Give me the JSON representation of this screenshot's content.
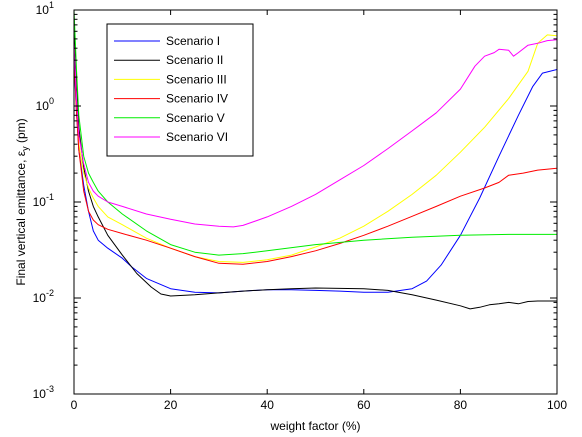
{
  "chart_data": {
    "type": "line",
    "title": "",
    "xlabel": "weight factor (%)",
    "ylabel": "Final vertical emittance, ε_y (pm)",
    "ylabel_parts": {
      "main": "Final vertical emittance, ε",
      "sub": "y",
      "unit": " (pm)"
    },
    "xlim": [
      0,
      100
    ],
    "ylim": [
      0.001,
      10
    ],
    "yscale": "log",
    "xticks": [
      0,
      20,
      40,
      60,
      80,
      100
    ],
    "xtick_labels": [
      "0",
      "20",
      "40",
      "60",
      "80",
      "100"
    ],
    "yticks": [
      {
        "value": 0.001,
        "base": "10",
        "exp": "-3"
      },
      {
        "value": 0.01,
        "base": "10",
        "exp": "-2"
      },
      {
        "value": 0.1,
        "base": "10",
        "exp": "-1"
      },
      {
        "value": 1,
        "base": "10",
        "exp": "0"
      },
      {
        "value": 10,
        "base": "10",
        "exp": "1"
      }
    ],
    "grid": false,
    "legend_position": "top-left",
    "series": [
      {
        "name": "Scenario I",
        "color": "#0000ff",
        "points": [
          [
            0,
            3.0
          ],
          [
            0.5,
            0.9
          ],
          [
            1,
            0.35
          ],
          [
            2,
            0.15
          ],
          [
            3,
            0.08
          ],
          [
            4,
            0.05
          ],
          [
            5,
            0.04
          ],
          [
            7,
            0.033
          ],
          [
            10,
            0.026
          ],
          [
            12,
            0.021
          ],
          [
            15,
            0.016
          ],
          [
            20,
            0.0125
          ],
          [
            25,
            0.0115
          ],
          [
            30,
            0.0113
          ],
          [
            35,
            0.0118
          ],
          [
            40,
            0.0122
          ],
          [
            45,
            0.0122
          ],
          [
            50,
            0.012
          ],
          [
            55,
            0.0118
          ],
          [
            60,
            0.0115
          ],
          [
            65,
            0.0115
          ],
          [
            70,
            0.0125
          ],
          [
            73,
            0.015
          ],
          [
            76,
            0.022
          ],
          [
            80,
            0.045
          ],
          [
            84,
            0.11
          ],
          [
            88,
            0.3
          ],
          [
            92,
            0.8
          ],
          [
            95,
            1.6
          ],
          [
            97,
            2.2
          ],
          [
            100,
            2.4
          ]
        ]
      },
      {
        "name": "Scenario II",
        "color": "#000000",
        "points": [
          [
            0,
            8.0
          ],
          [
            0.5,
            2.0
          ],
          [
            1,
            0.6
          ],
          [
            2,
            0.23
          ],
          [
            3,
            0.13
          ],
          [
            4,
            0.09
          ],
          [
            5,
            0.07
          ],
          [
            7,
            0.045
          ],
          [
            10,
            0.028
          ],
          [
            13,
            0.018
          ],
          [
            16,
            0.013
          ],
          [
            18,
            0.011
          ],
          [
            20,
            0.0105
          ],
          [
            25,
            0.0108
          ],
          [
            30,
            0.0113
          ],
          [
            35,
            0.0118
          ],
          [
            40,
            0.0122
          ],
          [
            45,
            0.0125
          ],
          [
            50,
            0.0127
          ],
          [
            55,
            0.0126
          ],
          [
            60,
            0.0125
          ],
          [
            65,
            0.012
          ],
          [
            70,
            0.0108
          ],
          [
            75,
            0.0095
          ],
          [
            80,
            0.0083
          ],
          [
            82,
            0.0077
          ],
          [
            84,
            0.008
          ],
          [
            86,
            0.0085
          ],
          [
            88,
            0.0087
          ],
          [
            90,
            0.009
          ],
          [
            92,
            0.0087
          ],
          [
            94,
            0.0092
          ],
          [
            96,
            0.0093
          ],
          [
            100,
            0.0093
          ]
        ]
      },
      {
        "name": "Scenario III",
        "color": "#ffff00",
        "points": [
          [
            0,
            4.0
          ],
          [
            0.5,
            1.0
          ],
          [
            1,
            0.4
          ],
          [
            2,
            0.2
          ],
          [
            3,
            0.14
          ],
          [
            4,
            0.11
          ],
          [
            5,
            0.09
          ],
          [
            7,
            0.07
          ],
          [
            10,
            0.058
          ],
          [
            15,
            0.042
          ],
          [
            20,
            0.033
          ],
          [
            25,
            0.027
          ],
          [
            30,
            0.024
          ],
          [
            35,
            0.0235
          ],
          [
            40,
            0.025
          ],
          [
            45,
            0.028
          ],
          [
            50,
            0.034
          ],
          [
            55,
            0.042
          ],
          [
            60,
            0.056
          ],
          [
            65,
            0.08
          ],
          [
            70,
            0.12
          ],
          [
            75,
            0.19
          ],
          [
            80,
            0.33
          ],
          [
            85,
            0.6
          ],
          [
            90,
            1.2
          ],
          [
            94,
            2.3
          ],
          [
            96,
            4.5
          ],
          [
            98,
            5.5
          ],
          [
            100,
            5.4
          ]
        ]
      },
      {
        "name": "Scenario IV",
        "color": "#ff0000",
        "points": [
          [
            0,
            3.5
          ],
          [
            0.5,
            0.9
          ],
          [
            1,
            0.35
          ],
          [
            2,
            0.13
          ],
          [
            3,
            0.08
          ],
          [
            4,
            0.065
          ],
          [
            5,
            0.058
          ],
          [
            7,
            0.052
          ],
          [
            10,
            0.047
          ],
          [
            15,
            0.04
          ],
          [
            20,
            0.033
          ],
          [
            25,
            0.027
          ],
          [
            30,
            0.023
          ],
          [
            35,
            0.0225
          ],
          [
            40,
            0.024
          ],
          [
            45,
            0.027
          ],
          [
            50,
            0.031
          ],
          [
            55,
            0.037
          ],
          [
            60,
            0.045
          ],
          [
            65,
            0.056
          ],
          [
            70,
            0.071
          ],
          [
            75,
            0.09
          ],
          [
            80,
            0.115
          ],
          [
            85,
            0.14
          ],
          [
            88,
            0.16
          ],
          [
            90,
            0.19
          ],
          [
            93,
            0.2
          ],
          [
            96,
            0.215
          ],
          [
            100,
            0.225
          ]
        ]
      },
      {
        "name": "Scenario V",
        "color": "#00ee00",
        "points": [
          [
            0,
            10
          ],
          [
            0.5,
            2.5
          ],
          [
            1,
            0.8
          ],
          [
            2,
            0.3
          ],
          [
            3,
            0.2
          ],
          [
            4,
            0.16
          ],
          [
            5,
            0.13
          ],
          [
            7,
            0.1
          ],
          [
            10,
            0.075
          ],
          [
            15,
            0.05
          ],
          [
            20,
            0.036
          ],
          [
            25,
            0.03
          ],
          [
            30,
            0.028
          ],
          [
            35,
            0.029
          ],
          [
            40,
            0.031
          ],
          [
            50,
            0.036
          ],
          [
            60,
            0.04
          ],
          [
            70,
            0.043
          ],
          [
            80,
            0.045
          ],
          [
            90,
            0.046
          ],
          [
            100,
            0.046
          ]
        ]
      },
      {
        "name": "Scenario VI",
        "color": "#ff00ff",
        "points": [
          [
            0,
            4.5
          ],
          [
            0.5,
            1.2
          ],
          [
            1,
            0.5
          ],
          [
            2,
            0.25
          ],
          [
            3,
            0.16
          ],
          [
            4,
            0.13
          ],
          [
            5,
            0.115
          ],
          [
            7,
            0.1
          ],
          [
            10,
            0.09
          ],
          [
            15,
            0.075
          ],
          [
            20,
            0.066
          ],
          [
            25,
            0.059
          ],
          [
            30,
            0.056
          ],
          [
            33,
            0.055
          ],
          [
            35,
            0.057
          ],
          [
            40,
            0.07
          ],
          [
            45,
            0.09
          ],
          [
            50,
            0.12
          ],
          [
            55,
            0.17
          ],
          [
            60,
            0.24
          ],
          [
            65,
            0.36
          ],
          [
            70,
            0.55
          ],
          [
            75,
            0.85
          ],
          [
            80,
            1.5
          ],
          [
            83,
            2.6
          ],
          [
            85,
            3.3
          ],
          [
            87,
            3.6
          ],
          [
            88,
            3.9
          ],
          [
            90,
            3.8
          ],
          [
            91,
            3.3
          ],
          [
            92,
            3.6
          ],
          [
            94,
            4.3
          ],
          [
            96,
            4.5
          ],
          [
            98,
            4.8
          ],
          [
            100,
            4.9
          ]
        ]
      }
    ]
  }
}
